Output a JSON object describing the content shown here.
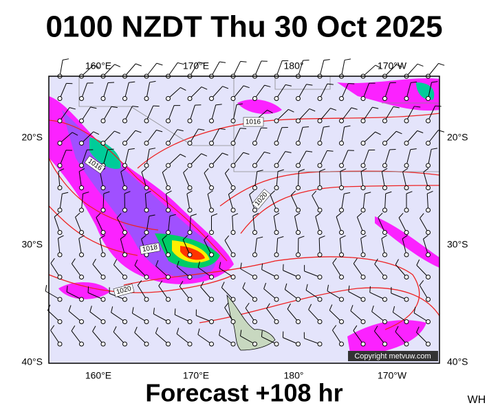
{
  "header": {
    "title": "0100 NZDT Thu 30 Oct 2025"
  },
  "map": {
    "lon_labels_top": [
      "160°E",
      "170°E",
      "180°",
      "170°W"
    ],
    "lon_labels_bottom": [
      "160°E",
      "170°E",
      "180°",
      "170°W"
    ],
    "lat_labels_left": [
      "20°S",
      "30°S",
      "40°S"
    ],
    "lat_labels_right": [
      "20°S",
      "30°S",
      "40°S"
    ],
    "isobar_labels": [
      "1016",
      "1016",
      "1020",
      "1018",
      "1020"
    ],
    "copyright": "Copyright metvuw.com"
  },
  "footer": {
    "forecast": "Forecast +108 hr",
    "code": "WH"
  }
}
